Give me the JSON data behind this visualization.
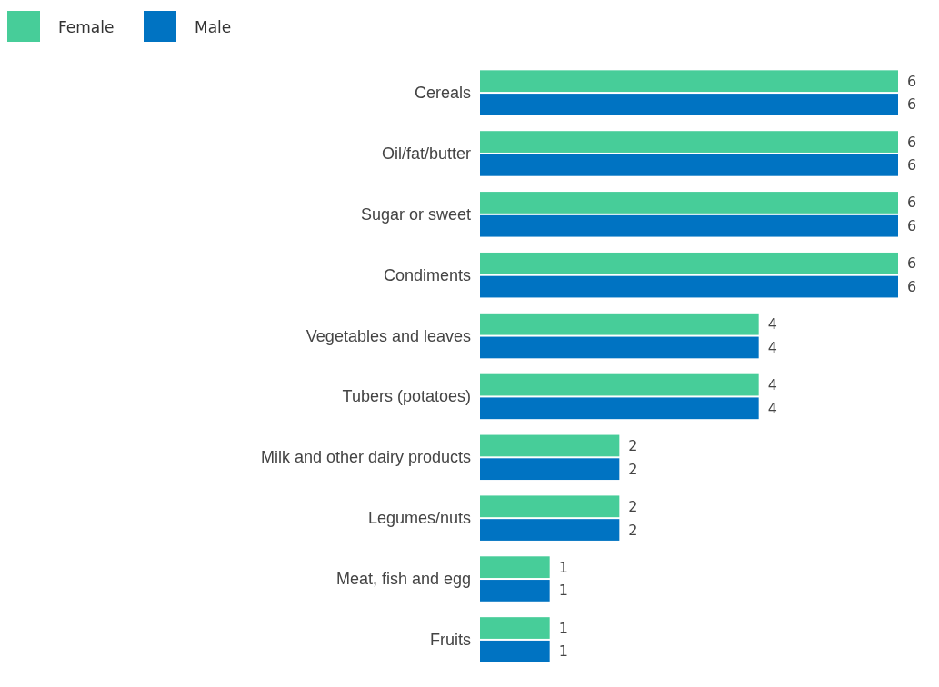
{
  "chart_data": {
    "type": "bar",
    "orientation": "horizontal",
    "categories": [
      "Cereals",
      "Oil/fat/butter",
      "Sugar or sweet",
      "Condiments",
      "Vegetables and leaves",
      "Tubers (potatoes)",
      "Milk and other dairy products",
      "Legumes/nuts",
      "Meat, fish and egg",
      "Fruits"
    ],
    "series": [
      {
        "name": "Female",
        "color": "#47cd99",
        "values": [
          6,
          6,
          6,
          6,
          4,
          4,
          2,
          2,
          1,
          1
        ]
      },
      {
        "name": "Male",
        "color": "#0073c2",
        "values": [
          6,
          6,
          6,
          6,
          4,
          4,
          2,
          2,
          1,
          1
        ]
      }
    ],
    "data_labels": true,
    "legend": "top left"
  }
}
